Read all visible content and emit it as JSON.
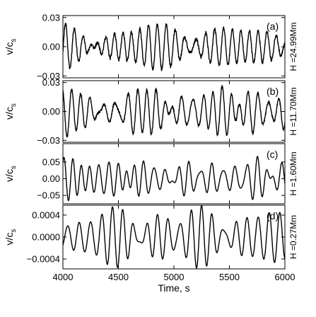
{
  "chart_data": {
    "type": "line",
    "xlabel": "Time, s",
    "xlim": [
      4000,
      6000
    ],
    "xticks": [
      4000,
      4500,
      5000,
      5500,
      6000
    ],
    "panels": [
      {
        "label": "(a)",
        "ylabel_main": "v/c",
        "ylabel_sub": "s",
        "height_label": "H =24.99Mm",
        "ylim": [
          -0.032,
          0.032
        ],
        "yticks": [
          -0.03,
          0.0,
          0.03
        ],
        "ytick_labels": [
          "−0.03",
          "0.00",
          "0.03"
        ],
        "series": [
          {
            "period": 95,
            "amplitude": 0.014,
            "noise": 0.0018,
            "seed": 11
          }
        ]
      },
      {
        "label": "(b)",
        "ylabel_main": "v/c",
        "ylabel_sub": "s",
        "height_label": "H =11.70Mm",
        "ylim": [
          -0.032,
          0.032
        ],
        "yticks": [
          -0.03,
          0.0,
          0.03
        ],
        "ytick_labels": [
          "−0.03",
          "0.00",
          "0.03"
        ],
        "series": [
          {
            "period": 95,
            "amplitude": 0.016,
            "noise": 0.0012,
            "seed": 23
          }
        ]
      },
      {
        "label": "(c)",
        "ylabel_main": "v/c",
        "ylabel_sub": "s",
        "height_label": "H =1.60Mm",
        "ylim": [
          -0.075,
          0.105
        ],
        "yticks": [
          -0.05,
          0.0,
          0.05
        ],
        "ytick_labels": [
          "−0.05",
          "0.00",
          "0.05"
        ],
        "series": [
          {
            "period": 90,
            "amplitude": 0.045,
            "noise": 0.0,
            "seed": 37
          }
        ]
      },
      {
        "label": "(d)",
        "ylabel_main": "v/c",
        "ylabel_sub": "s",
        "height_label": "H =0.27Mm",
        "ylim": [
          -0.00058,
          0.00058
        ],
        "yticks": [
          -0.0004,
          0.0,
          0.0004
        ],
        "ytick_labels": [
          "−0.0004",
          "0.0000",
          "0.0004"
        ],
        "series": [
          {
            "period": 92,
            "amplitude": 0.0003,
            "noise": 0.0,
            "seed": 53
          }
        ]
      }
    ],
    "grid": false,
    "legend": "none"
  }
}
